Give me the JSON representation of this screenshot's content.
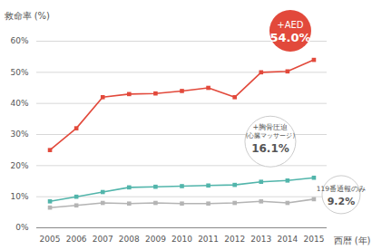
{
  "chart_data": {
    "type": "line",
    "y_label": "救命率 (%)",
    "x_label": "西暦 (年)",
    "x": [
      2005,
      2006,
      2007,
      2008,
      2009,
      2010,
      2011,
      2012,
      2013,
      2014,
      2015
    ],
    "xlim": [
      2004.5,
      2015.5
    ],
    "xticks": [
      2005,
      2006,
      2007,
      2008,
      2009,
      2010,
      2011,
      2012,
      2013,
      2014,
      2015
    ],
    "ylim": [
      0,
      60
    ],
    "yticks": [
      {
        "value": 0,
        "label": "0%"
      },
      {
        "value": 10,
        "label": "10%"
      },
      {
        "value": 20,
        "label": "20%"
      },
      {
        "value": 30,
        "label": "30%"
      },
      {
        "value": 40,
        "label": "40%"
      },
      {
        "value": 50,
        "label": "50%"
      },
      {
        "value": 60,
        "label": "60%"
      }
    ],
    "grid": true,
    "series": [
      {
        "name": "+AED",
        "color": "#e2493b",
        "marker": "square",
        "values": [
          25,
          32,
          42,
          43,
          43.2,
          44,
          45,
          42,
          50,
          50.3,
          54.0
        ],
        "value_labels": [
          null,
          null,
          null,
          null,
          null,
          null,
          null,
          null,
          null,
          null,
          "54.0%"
        ]
      },
      {
        "name": "+胸骨圧迫 (心臓マッサージ)",
        "color": "#52b5ab",
        "marker": "square",
        "values": [
          8.5,
          10,
          11.5,
          13,
          13.2,
          13.4,
          13.6,
          13.8,
          14.8,
          15.2,
          16.1
        ],
        "value_labels": [
          null,
          null,
          null,
          null,
          null,
          null,
          null,
          null,
          null,
          null,
          "16.1%"
        ]
      },
      {
        "name": "119番通報のみ",
        "color": "#b4b4b4",
        "marker": "square",
        "values": [
          6.5,
          7.2,
          8,
          7.8,
          8,
          7.8,
          7.8,
          8,
          8.5,
          8,
          9.2
        ],
        "value_labels": [
          null,
          null,
          null,
          null,
          null,
          null,
          null,
          null,
          null,
          null,
          "9.2%"
        ]
      }
    ]
  }
}
